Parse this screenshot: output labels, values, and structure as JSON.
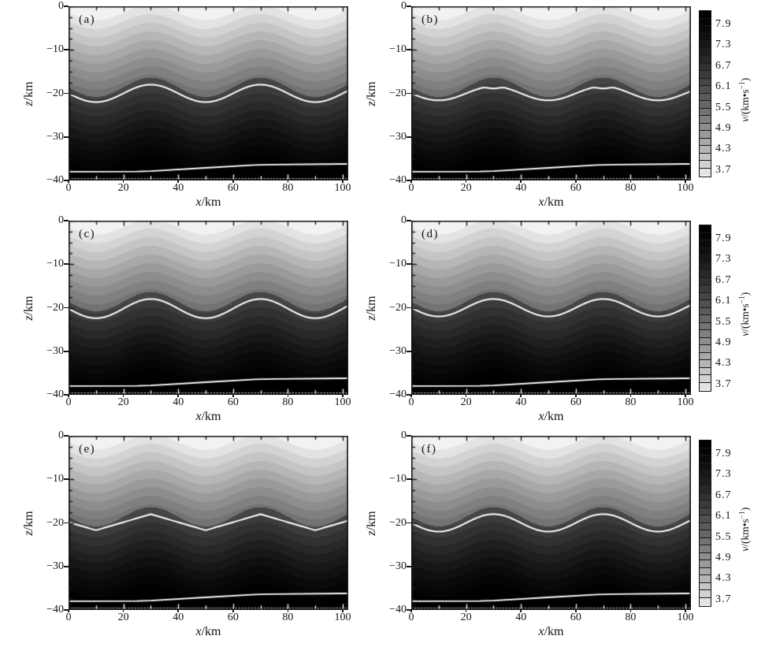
{
  "figure": {
    "panels": [
      {
        "id": "a",
        "label": "(a)",
        "col": 0,
        "row": 0,
        "line_shape": "smooth",
        "line_mean": -20,
        "line_amp": 2.0,
        "has_colorbar": false
      },
      {
        "id": "b",
        "label": "(b)",
        "col": 1,
        "row": 0,
        "line_shape": "flattop",
        "line_mean": -20,
        "line_amp": 1.6,
        "line_cap": -18.75,
        "has_colorbar": true
      },
      {
        "id": "c",
        "label": "(c)",
        "col": 0,
        "row": 1,
        "line_shape": "smooth",
        "line_mean": -20.2,
        "line_amp": 2.2,
        "has_colorbar": false
      },
      {
        "id": "d",
        "label": "(d)",
        "col": 1,
        "row": 1,
        "line_shape": "smooth",
        "line_mean": -20,
        "line_amp": 2.0,
        "has_colorbar": true
      },
      {
        "id": "e",
        "label": "(e)",
        "col": 0,
        "row": 2,
        "line_shape": "triangle",
        "line_mean": -18,
        "line_amp": 3.7,
        "has_colorbar": false
      },
      {
        "id": "f",
        "label": "(f)",
        "col": 1,
        "row": 2,
        "line_shape": "smooth",
        "line_mean": -20,
        "line_amp": 2.0,
        "has_colorbar": true
      }
    ],
    "x_axis": {
      "label_var": "x",
      "label_unit": "/km",
      "ticks": [
        "0",
        "20",
        "40",
        "60",
        "80",
        "100"
      ],
      "tick_values": [
        0,
        20,
        40,
        60,
        80,
        100
      ],
      "max": 102
    },
    "z_axis": {
      "label_var": "z",
      "label_unit": "/km",
      "ticks": [
        "0",
        "−10",
        "−20",
        "−30",
        "−40"
      ],
      "tick_values": [
        0,
        -10,
        -20,
        -30,
        -40
      ],
      "min": -40
    },
    "colorbar": {
      "unit_var": "v",
      "unit_mid": "/(km•s",
      "unit_sup": "−1",
      "unit_suffix": ")",
      "ticks": [
        "7.9",
        "7.3",
        "6.7",
        "6.1",
        "5.5",
        "4.9",
        "4.3",
        "3.7"
      ],
      "tick_values": [
        7.9,
        7.3,
        6.7,
        6.1,
        5.5,
        4.9,
        4.3,
        3.7
      ],
      "vmin": 3.5,
      "vmax": 8.1,
      "segments": 22
    }
  },
  "chart_data": {
    "type": "heatmap",
    "title": "",
    "xlabel": "x/km",
    "ylabel": "z/km",
    "x_range": [
      0,
      102
    ],
    "z_range": [
      -40,
      0
    ],
    "colormap": "reversed grayscale, discrete 0.2 km/s velocity bands",
    "colorbar_label": "v/(km•s−1)",
    "colorbar_ticks": [
      3.7,
      4.3,
      4.9,
      5.5,
      6.1,
      6.7,
      7.3,
      7.9
    ],
    "v_display_range": [
      3.7,
      8.1
    ],
    "contour_interval": 0.2,
    "model": {
      "description": "sinusoidally folded layered crustal velocity model, identical background field in all six panels",
      "fold_wavelength_km": 40,
      "fold_crests_x_km": [
        30,
        70
      ],
      "fold_amplitude_km": 1.7,
      "surface_velocity_km_s": 3.55,
      "velocity_gradient_per_km": 0.1,
      "interface_mean_depth_km": -18.6,
      "interface_fold_amp_km": 2.2,
      "subinterface_velocity_km_s": 6.2,
      "moho_points": [
        [
          0,
          -38
        ],
        [
          25,
          -37.95
        ],
        [
          30,
          -37.85
        ],
        [
          50,
          -37.1
        ],
        [
          68,
          -36.45
        ],
        [
          75,
          -36.35
        ],
        [
          102,
          -36.2
        ]
      ]
    },
    "panel_interfaces": [
      {
        "panel": "(a)",
        "white_line": "z = -20 + 2.0*cos(2*pi*(x-30)/40)"
      },
      {
        "panel": "(b)",
        "white_line": "flat-topped: z = min(-20 + 1.6*cos(2*pi*(x-30)/40), -18.75) with small notch at crests x=30,70"
      },
      {
        "panel": "(c)",
        "white_line": "z = -20.2 + 2.2*cos(2*pi*(x-30)/40)"
      },
      {
        "panel": "(d)",
        "white_line": "z = -20 + 2.0*cos(2*pi*(x-30)/40)"
      },
      {
        "panel": "(e)",
        "white_line": "triangular: z = -18 - 3.7*dist_to_nearest_crest(x)/20, crests at x=30,70"
      },
      {
        "panel": "(f)",
        "white_line": "z = -20 + 2.0*cos(2*pi*(x-30)/40)"
      }
    ]
  }
}
